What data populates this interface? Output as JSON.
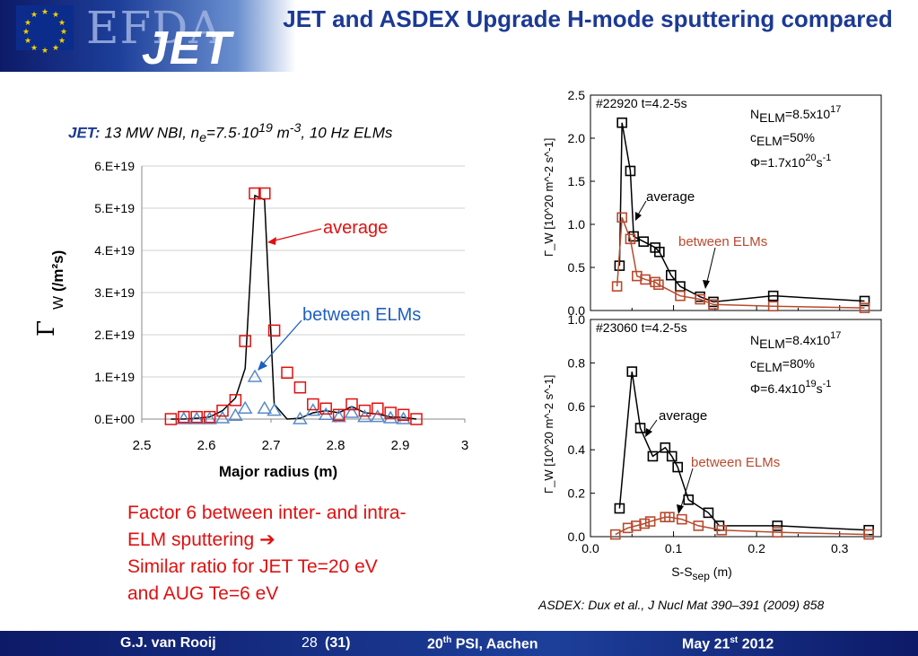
{
  "header": {
    "logo_text_efda": "EFDA",
    "logo_text_jet": "JET",
    "title": "JET and ASDEX Upgrade H-mode sputtering compared"
  },
  "subtitle": {
    "label": "JET:",
    "text": "13 MW NBI, n",
    "sub_e": "e",
    "eq": "=7.5·10",
    "sup19": "19",
    "unit": " m",
    "sup_m3": "-3",
    "tail": ", 10 Hz ELMs"
  },
  "conclusion": {
    "line1": "Factor 6 between inter- and intra-",
    "line2": "ELM sputtering ➔",
    "line3": "Similar ratio for JET Te=20 eV",
    "line4": "and AUG Te=6 eV"
  },
  "reference": "ASDEX: Dux et al., J Nucl Mat 390–391 (2009) 858",
  "footer": {
    "author": "G.J. van Rooij",
    "page": "28",
    "page_total": "(31)",
    "conf_sup_base": "20",
    "conf_sup": "th",
    "conf_rest": " PSI, Aachen",
    "date_base": "May 21",
    "date_sup": "st",
    "date_year": " 2012"
  },
  "colors": {
    "average_marker": "#e01010",
    "between_marker": "#5a8ac8",
    "asdex_average": "#000000",
    "asdex_between": "#b84a2e",
    "title": "#1c3a94",
    "annotation_red": "#e01010",
    "annotation_blue": "#1f5fbf"
  },
  "chart_data": [
    {
      "type": "line",
      "xlabel": "Major radius (m)",
      "ylabel": "Γ_W (/m²s)",
      "ylabel_main": "Γ",
      "ylabel_sub": "W",
      "ylabel_unit": " (/m²s)",
      "xlim": [
        2.5,
        3.0
      ],
      "ylim": [
        0,
        6e+19
      ],
      "xticks": [
        "2.5",
        "2.6",
        "2.7",
        "2.8",
        "2.9",
        "3"
      ],
      "yticks": [
        "0.E+00",
        "1.E+19",
        "2.E+19",
        "3.E+19",
        "4.E+19",
        "5.E+19",
        "6.E+19"
      ],
      "grid": "horizontal",
      "annotations": {
        "average": "average",
        "between": "between ELMs"
      },
      "line": {
        "x": [
          2.545,
          2.565,
          2.585,
          2.605,
          2.625,
          2.645,
          2.66,
          2.675,
          2.69,
          2.705,
          2.725,
          2.745,
          2.765,
          2.785,
          2.805,
          2.825,
          2.845,
          2.865,
          2.885,
          2.905,
          2.925
        ],
        "y": [
          0,
          0,
          2e+17,
          5e+17,
          2e+18,
          5e+18,
          1.2e+19,
          5.3e+19,
          5.2e+19,
          3.5e+18,
          0.0,
          2e+17,
          1.5e+18,
          2e+18,
          1.5e+18,
          3e+18,
          1.5e+18,
          1.2e+18,
          5e+17,
          4e+17,
          0.0
        ]
      },
      "series": [
        {
          "name": "average",
          "x": [
            2.545,
            2.565,
            2.585,
            2.605,
            2.625,
            2.645,
            2.66,
            2.675,
            2.69,
            2.705,
            2.725,
            2.745,
            2.765,
            2.785,
            2.805,
            2.825,
            2.845,
            2.865,
            2.885,
            2.905,
            2.925
          ],
          "y": [
            0,
            5e+17,
            5e+17,
            5e+17,
            2e+18,
            4.5e+18,
            1.85e+19,
            5.35e+19,
            5.35e+19,
            2.1e+19,
            1.1e+19,
            7.5e+18,
            3.5e+18,
            2.5e+18,
            1e+18,
            3.5e+18,
            2e+18,
            2.5e+18,
            1.5e+18,
            1e+18,
            0.0
          ]
        },
        {
          "name": "between ELMs",
          "x": [
            2.565,
            2.585,
            2.605,
            2.625,
            2.645,
            2.66,
            2.675,
            2.69,
            2.705,
            2.745,
            2.765,
            2.785,
            2.805,
            2.825,
            2.845,
            2.865,
            2.885,
            2.905
          ],
          "y": [
            0.0,
            0.0,
            0.0,
            2e+17,
            8e+17,
            2.5e+18,
            1e+19,
            2.5e+18,
            2e+18,
            0.0,
            2e+18,
            1e+18,
            5e+17,
            1.5e+18,
            5e+17,
            5e+17,
            2e+17,
            0.0
          ]
        }
      ]
    },
    {
      "type": "line",
      "label": "#22920 t=4.2-5s",
      "params": {
        "n_elm": "N",
        "n_elm_sub": "ELM",
        "n_elm_val": "=8.5x10",
        "n_elm_sup": "17",
        "c_elm": "c",
        "c_elm_sub": "ELM",
        "c_elm_val": "=50%",
        "phi": "Φ=1.7x10",
        "phi_sup": "20",
        "phi_unit": "s",
        "phi_unit_sup": "-1"
      },
      "ylabel": "Γ_W [10^20 m^-2 s^-1]",
      "xlim": [
        0,
        0.35
      ],
      "ylim": [
        0,
        2.5
      ],
      "yticks": [
        "0.0",
        "0.5",
        "1.0",
        "1.5",
        "2.0",
        "2.5"
      ],
      "annotations": {
        "average": "average",
        "between": "between ELMs"
      },
      "series": [
        {
          "name": "average",
          "x": [
            0.035,
            0.038,
            0.048,
            0.052,
            0.064,
            0.078,
            0.083,
            0.097,
            0.108,
            0.132,
            0.148,
            0.22,
            0.33
          ],
          "y": [
            0.52,
            2.18,
            1.62,
            0.86,
            0.8,
            0.73,
            0.68,
            0.41,
            0.28,
            0.16,
            0.1,
            0.17,
            0.11
          ]
        },
        {
          "name": "between ELMs",
          "x": [
            0.032,
            0.038,
            0.048,
            0.056,
            0.066,
            0.078,
            0.082,
            0.108,
            0.132,
            0.148,
            0.22,
            0.33
          ],
          "y": [
            0.28,
            1.08,
            0.83,
            0.4,
            0.36,
            0.33,
            0.3,
            0.17,
            0.13,
            0.07,
            0.05,
            0.03
          ]
        }
      ]
    },
    {
      "type": "line",
      "label": "#23060 t=4.2-5s",
      "params": {
        "n_elm": "N",
        "n_elm_sub": "ELM",
        "n_elm_val": "=8.4x10",
        "n_elm_sup": "17",
        "c_elm": "c",
        "c_elm_sub": "ELM",
        "c_elm_val": "=80%",
        "phi": "Φ=6.4x10",
        "phi_sup": "19",
        "phi_unit": "s",
        "phi_unit_sup": "-1"
      },
      "ylabel": "Γ_W [10^20 m^-2 s^-1]",
      "xlabel": "S-S_sep (m)",
      "xlabel_main": "S-S",
      "xlabel_sub": "sep",
      "xlabel_unit": " (m)",
      "xlim": [
        0,
        0.35
      ],
      "ylim": [
        0,
        1.0
      ],
      "xticks": [
        "0.0",
        "0.1",
        "0.2",
        "0.3"
      ],
      "yticks": [
        "0.0",
        "0.2",
        "0.4",
        "0.6",
        "0.8",
        "1.0"
      ],
      "annotations": {
        "average": "average",
        "between": "between ELMs"
      },
      "series": [
        {
          "name": "average",
          "x": [
            0.035,
            0.05,
            0.06,
            0.075,
            0.09,
            0.098,
            0.105,
            0.118,
            0.142,
            0.155,
            0.225,
            0.335
          ],
          "y": [
            0.13,
            0.76,
            0.5,
            0.37,
            0.41,
            0.37,
            0.32,
            0.17,
            0.11,
            0.05,
            0.05,
            0.03
          ]
        },
        {
          "name": "between ELMs",
          "x": [
            0.03,
            0.045,
            0.055,
            0.065,
            0.072,
            0.09,
            0.095,
            0.11,
            0.13,
            0.158,
            0.225,
            0.335
          ],
          "y": [
            0.01,
            0.04,
            0.05,
            0.06,
            0.07,
            0.09,
            0.09,
            0.08,
            0.05,
            0.03,
            0.02,
            0.01
          ]
        }
      ]
    }
  ]
}
